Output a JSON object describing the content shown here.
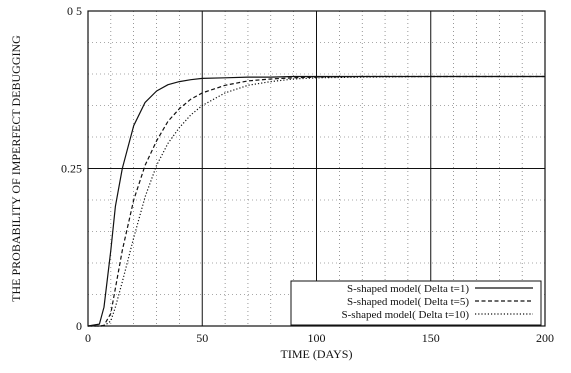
{
  "chart_data": {
    "type": "line",
    "xlabel": "TIME (DAYS)",
    "ylabel": "THE PROBABILITY OF IMPERFECT DEBUGGING",
    "xlim": [
      0,
      200
    ],
    "ylim": [
      0,
      0.5
    ],
    "xticks": [
      0,
      50,
      100,
      150,
      200
    ],
    "xtick_labels": [
      "0",
      "50",
      "100",
      "150",
      "200"
    ],
    "yticks": [
      0,
      0.25,
      0.5
    ],
    "ytick_labels": [
      "0",
      "0.25",
      "0 5"
    ],
    "major_grid": "solid",
    "minor_grid": "dotted",
    "legend_position": "bottom-right",
    "x": [
      0,
      5,
      7,
      10,
      12,
      15,
      20,
      25,
      30,
      35,
      40,
      45,
      50,
      60,
      70,
      80,
      90,
      100,
      120,
      150,
      200
    ],
    "series": [
      {
        "name": "S-shaped model( Delta t=1)",
        "dash": "solid",
        "values": [
          0,
          0.003,
          0.03,
          0.12,
          0.19,
          0.25,
          0.318,
          0.355,
          0.373,
          0.383,
          0.388,
          0.391,
          0.393,
          0.394,
          0.395,
          0.395,
          0.396,
          0.396,
          0.396,
          0.396,
          0.396
        ]
      },
      {
        "name": "S-shaped model( Delta t=5)",
        "dash": "dashed",
        "values": [
          0,
          0.0,
          0.001,
          0.02,
          0.06,
          0.12,
          0.2,
          0.255,
          0.294,
          0.325,
          0.345,
          0.36,
          0.37,
          0.382,
          0.389,
          0.392,
          0.394,
          0.395,
          0.396,
          0.396,
          0.396
        ]
      },
      {
        "name": "S-shaped model( Delta t=10)",
        "dash": "dotted",
        "values": [
          0,
          0.0,
          0.0,
          0.008,
          0.03,
          0.07,
          0.14,
          0.205,
          0.255,
          0.29,
          0.315,
          0.335,
          0.35,
          0.37,
          0.382,
          0.388,
          0.392,
          0.394,
          0.395,
          0.396,
          0.396
        ]
      }
    ]
  }
}
